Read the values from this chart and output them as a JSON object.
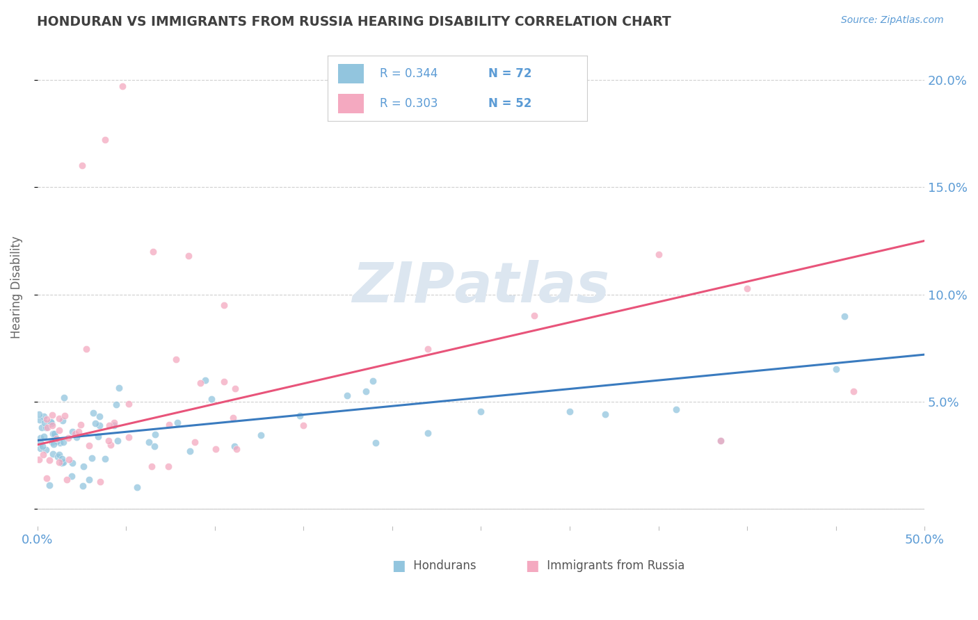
{
  "title": "HONDURAN VS IMMIGRANTS FROM RUSSIA HEARING DISABILITY CORRELATION CHART",
  "source": "Source: ZipAtlas.com",
  "ylabel": "Hearing Disability",
  "xlim": [
    0,
    0.5
  ],
  "ylim": [
    -0.008,
    0.215
  ],
  "yticks": [
    0.0,
    0.05,
    0.1,
    0.15,
    0.2
  ],
  "ytick_labels": [
    "",
    "5.0%",
    "10.0%",
    "15.0%",
    "20.0%"
  ],
  "xticks": [
    0.0,
    0.05,
    0.1,
    0.15,
    0.2,
    0.25,
    0.3,
    0.35,
    0.4,
    0.45,
    0.5
  ],
  "blue_color": "#92c5de",
  "pink_color": "#f4a9c0",
  "blue_line_color": "#3a7bbf",
  "pink_line_color": "#e8547a",
  "title_color": "#404040",
  "axis_label_color": "#5b9bd5",
  "watermark_color": "#dce6f0",
  "blue_trend_start": 0.032,
  "blue_trend_end": 0.072,
  "pink_trend_start": 0.03,
  "pink_trend_end": 0.125
}
